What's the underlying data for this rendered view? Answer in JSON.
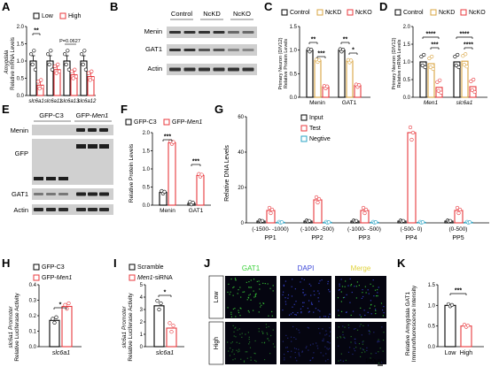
{
  "panels": {
    "A": "A",
    "B": "B",
    "C": "C",
    "D": "D",
    "E": "E",
    "F": "F",
    "G": "G",
    "H": "H",
    "I": "I",
    "J": "J",
    "K": "K"
  },
  "colors": {
    "black": "#000000",
    "red": "#e8383d",
    "orange": "#d9a441",
    "teal": "#2aa3c4",
    "green": "#3ad13a",
    "blue": "#3a46d9",
    "yellow": "#e0d23a"
  },
  "panelA": {
    "ylabel_italic": "Amygdala",
    "ylabel": "Relative mRNA Levels",
    "legend": [
      "Low",
      "High"
    ],
    "genes": [
      "slc6a1",
      "slc6a11",
      "slc6a13",
      "slc6a12"
    ],
    "sig": [
      "**",
      "P=0.0627"
    ]
  },
  "panelB": {
    "columns": [
      "Control",
      "NcKD",
      "NcKO"
    ],
    "rows": [
      "Menin",
      "GAT1",
      "Actin"
    ]
  },
  "panelC": {
    "legend": [
      "Control",
      "NcKD",
      "NcKO"
    ],
    "ylabel": [
      "Primary Neuron (DIV12)",
      "Relative Protein Levels"
    ],
    "categories": [
      "Menin",
      "GAT1"
    ],
    "sig": [
      "**",
      "***",
      "**",
      "*"
    ]
  },
  "panelD": {
    "legend": [
      "Control",
      "NcKD",
      "NcKO"
    ],
    "ylabel": [
      "Primary Neuron (DIV12)",
      "Relative mRNA Levels"
    ],
    "categories": [
      "Men1",
      "slc6a1"
    ],
    "sig": [
      "****",
      "***",
      "****",
      "****"
    ]
  },
  "panelE": {
    "columns": [
      "GFP-C3",
      "GFP-Men1"
    ],
    "rows": [
      "Menin",
      "GFP",
      "GAT1",
      "Actin"
    ]
  },
  "panelF": {
    "legend": [
      "GFP-C3",
      "GFP-Men1"
    ],
    "ylabel": "Relative Protein Levels",
    "categories": [
      "Menin",
      "GAT1"
    ],
    "sig": [
      "***",
      "***"
    ]
  },
  "panelG": {
    "legend": [
      "Input",
      "Test",
      "Negtive"
    ],
    "ylabel": "Relative DNA Levels",
    "regions": [
      "(-1500- -1000)",
      "(-1000- -500)",
      "(-1000- -500)",
      "(-500- 0)",
      "(0-500)"
    ],
    "names": [
      "PP1",
      "PP2",
      "PP3",
      "PP4",
      "PP5"
    ]
  },
  "panelH": {
    "legend": [
      "GFP-C3",
      "GFP-Men1"
    ],
    "ylabel": [
      "slc6a1 Promoter",
      "Relative Luciferase Activity"
    ],
    "xlabel": "slc6a1",
    "sig": "*"
  },
  "panelI": {
    "legend": [
      "Scramble",
      "Men1-siRNA"
    ],
    "ylabel": [
      "slc6a1 Promoter",
      "Relative Luciferase Activity"
    ],
    "xlabel": "slc6a1",
    "sig": "*"
  },
  "panelJ": {
    "columns": [
      "GAT1",
      "DAPI",
      "Merge"
    ],
    "rows": [
      "Low",
      "High"
    ],
    "scale": "100μm"
  },
  "panelK": {
    "ylabel": [
      "Relative Amygdala GAT1",
      "Immunofluorescence Intensity"
    ],
    "categories": [
      "Low",
      "High"
    ],
    "sig": "***"
  },
  "chart_data": [
    {
      "panel": "A",
      "type": "bar",
      "categories": [
        "slc6a1",
        "slc6a11",
        "slc6a13",
        "slc6a12"
      ],
      "series": [
        {
          "name": "Low",
          "values": [
            1.0,
            1.0,
            1.0,
            1.0
          ]
        },
        {
          "name": "High",
          "values": [
            0.3,
            0.75,
            0.6,
            0.55
          ]
        }
      ],
      "ylim": [
        0,
        2.0
      ],
      "yticks": [
        0,
        0.5,
        1.0,
        1.5,
        2.0
      ]
    },
    {
      "panel": "C",
      "type": "bar",
      "categories": [
        "Menin",
        "GAT1"
      ],
      "series": [
        {
          "name": "Control",
          "values": [
            1.0,
            1.0
          ]
        },
        {
          "name": "NcKD",
          "values": [
            0.78,
            0.77
          ]
        },
        {
          "name": "NcKO",
          "values": [
            0.22,
            0.25
          ]
        }
      ],
      "ylim": [
        0,
        1.5
      ],
      "yticks": [
        0,
        0.5,
        1.0,
        1.5
      ]
    },
    {
      "panel": "D",
      "type": "bar",
      "categories": [
        "Men1",
        "slc6a1"
      ],
      "series": [
        {
          "name": "Control",
          "values": [
            1.0,
            1.0
          ]
        },
        {
          "name": "NcKD",
          "values": [
            0.95,
            1.02
          ]
        },
        {
          "name": "NcKO",
          "values": [
            0.28,
            0.3
          ]
        }
      ],
      "ylim": [
        0,
        2.0
      ],
      "yticks": [
        0,
        0.5,
        1.0,
        1.5,
        2.0
      ]
    },
    {
      "panel": "F",
      "type": "bar",
      "categories": [
        "Menin",
        "GAT1"
      ],
      "series": [
        {
          "name": "GFP-C3",
          "values": [
            0.35,
            0.05
          ]
        },
        {
          "name": "GFP-Men1",
          "values": [
            1.72,
            0.82
          ]
        }
      ],
      "ylim": [
        0,
        2.0
      ],
      "yticks": [
        0,
        0.5,
        1.0,
        1.5,
        2.0
      ]
    },
    {
      "panel": "G",
      "type": "bar",
      "categories": [
        "PP1",
        "PP2",
        "PP3",
        "PP4",
        "PP5"
      ],
      "series": [
        {
          "name": "Input",
          "values": [
            1,
            1,
            1,
            1,
            1
          ]
        },
        {
          "name": "Test",
          "values": [
            7,
            13,
            7,
            51,
            7
          ]
        },
        {
          "name": "Negtive",
          "values": [
            0.3,
            0.3,
            0.3,
            0.3,
            0.3
          ]
        }
      ],
      "ylim": [
        0,
        60
      ],
      "yticks": [
        0,
        20,
        40,
        60
      ]
    },
    {
      "panel": "H",
      "type": "bar",
      "categories": [
        "slc6a1"
      ],
      "series": [
        {
          "name": "GFP-C3",
          "values": [
            0.17
          ]
        },
        {
          "name": "GFP-Men1",
          "values": [
            0.26
          ]
        }
      ],
      "ylim": [
        0,
        0.4
      ],
      "yticks": [
        0,
        0.1,
        0.2,
        0.3,
        0.4
      ]
    },
    {
      "panel": "I",
      "type": "bar",
      "categories": [
        "slc6a1"
      ],
      "series": [
        {
          "name": "Scramble",
          "values": [
            3.3
          ]
        },
        {
          "name": "Men1-siRNA",
          "values": [
            1.5
          ]
        }
      ],
      "ylim": [
        0,
        5
      ],
      "yticks": [
        0,
        1,
        2,
        3,
        4,
        5
      ]
    },
    {
      "panel": "K",
      "type": "bar",
      "categories": [
        "Low",
        "High"
      ],
      "series": [
        {
          "name": "",
          "values": [
            1.0,
            0.5
          ]
        }
      ],
      "ylim": [
        0,
        1.5
      ],
      "yticks": [
        0,
        0.5,
        1.0,
        1.5
      ]
    }
  ]
}
